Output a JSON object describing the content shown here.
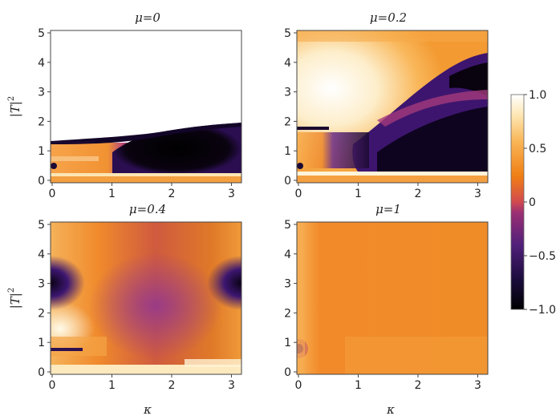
{
  "chart_data": [
    {
      "type": "heatmap",
      "title": "μ=0",
      "xlabel": "",
      "ylabel": "|T|²",
      "xlim": [
        0,
        3.14159
      ],
      "ylim": [
        0,
        5
      ],
      "xticks": [
        "0",
        "1",
        "2",
        "3"
      ],
      "yticks": [
        "0",
        "1",
        "2",
        "3",
        "4",
        "5"
      ],
      "colorscale_range": [
        -1,
        1
      ],
      "approx_field_note": ""
    },
    {
      "type": "heatmap",
      "title": "μ=0.2",
      "xlabel": "",
      "ylabel": "",
      "xlim": [
        0,
        3.14159
      ],
      "ylim": [
        0,
        5
      ],
      "xticks": [
        "0",
        "1",
        "2",
        "3"
      ],
      "yticks": [
        "0",
        "1",
        "2",
        "3",
        "4",
        "5"
      ],
      "colorscale_range": [
        -1,
        1
      ]
    },
    {
      "type": "heatmap",
      "title": "μ=0.4",
      "xlabel": "κ",
      "ylabel": "|T|²",
      "xlim": [
        0,
        3.14159
      ],
      "ylim": [
        0,
        5
      ],
      "xticks": [
        "0",
        "1",
        "2",
        "3"
      ],
      "yticks": [
        "0",
        "1",
        "2",
        "3",
        "4",
        "5"
      ],
      "colorscale_range": [
        -1,
        1
      ]
    },
    {
      "type": "heatmap",
      "title": "μ=1",
      "xlabel": "κ",
      "ylabel": "",
      "xlim": [
        0,
        3.14159
      ],
      "ylim": [
        0,
        5
      ],
      "xticks": [
        "0",
        "1",
        "2",
        "3"
      ],
      "yticks": [
        "0",
        "1",
        "2",
        "3",
        "4",
        "5"
      ],
      "colorscale_range": [
        -1,
        1
      ]
    }
  ],
  "colorbar": {
    "ticks": [
      "1.0",
      "0.5",
      "0",
      "−0.5",
      "−1.0"
    ],
    "values": [
      1.0,
      0.5,
      0,
      -0.5,
      -1.0
    ],
    "colors": [
      "#000000",
      "#3b0f70",
      "#8c2981",
      "#de4968",
      "#f07e14",
      "#fdae61",
      "#fde7a8",
      "#ffffff"
    ]
  },
  "labels": {
    "ylabel_top": "|T|",
    "ylabel_bottom": "|T|",
    "sup": "2",
    "xlabel_left": "κ",
    "xlabel_right": "κ"
  }
}
